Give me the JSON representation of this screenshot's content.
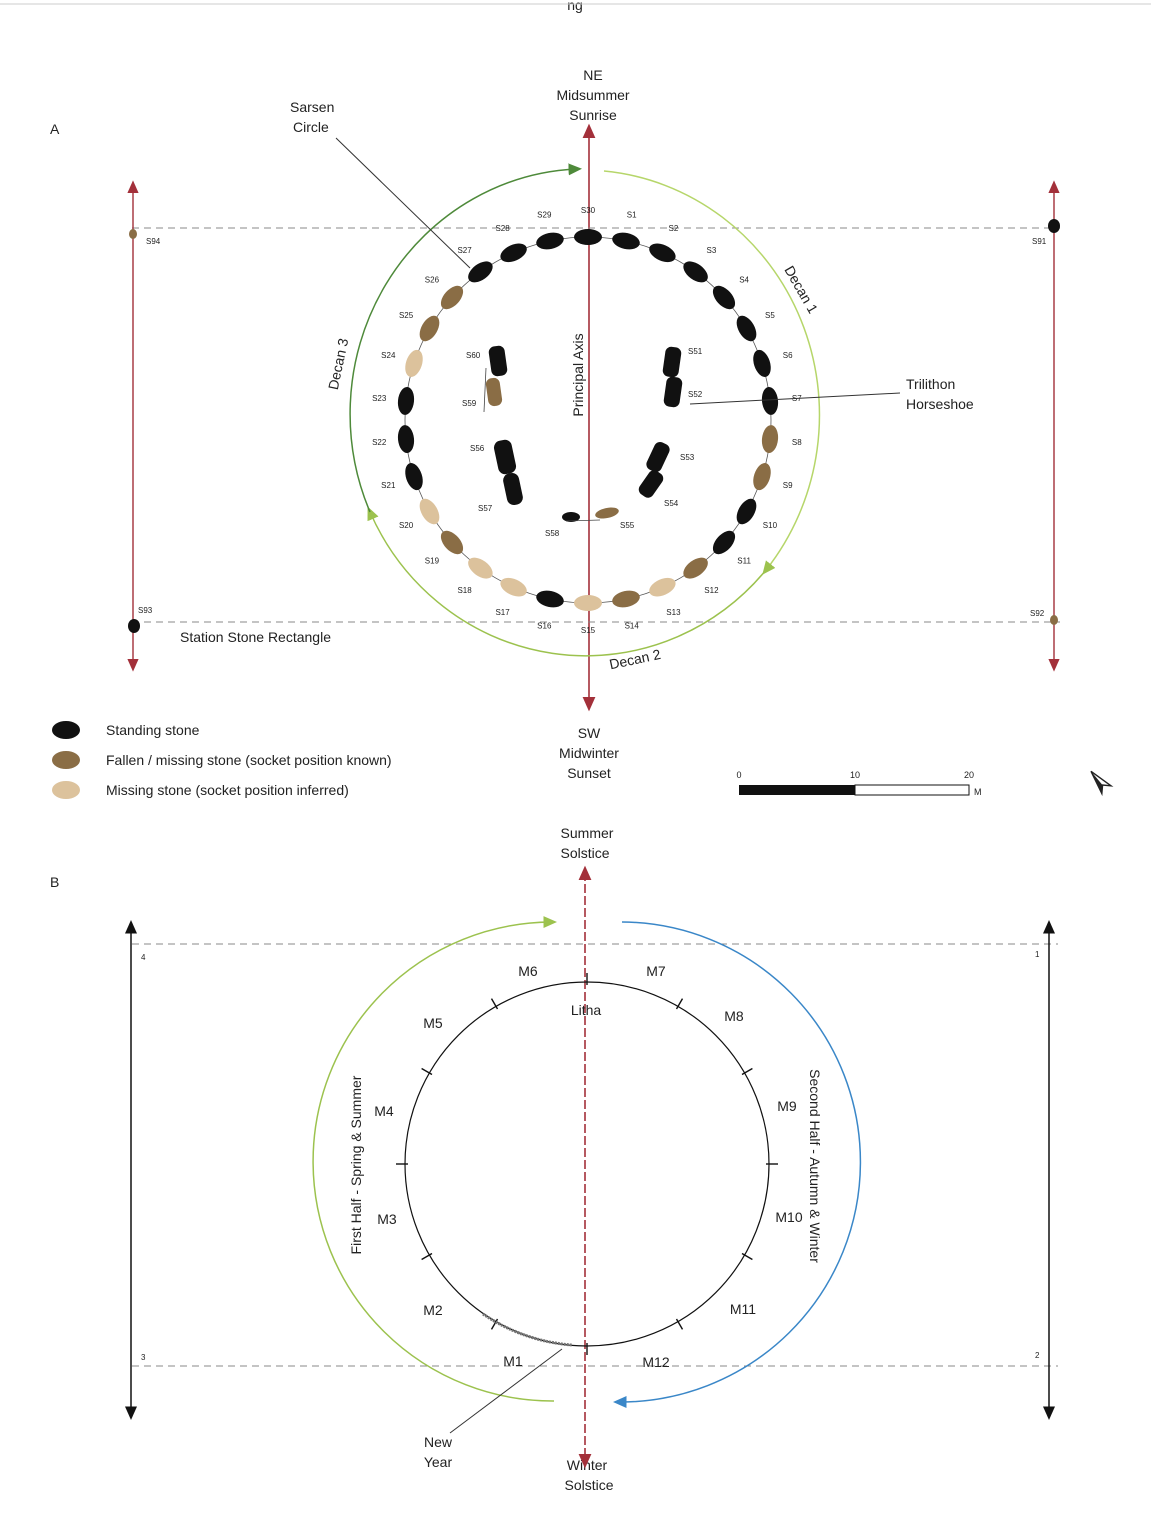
{
  "page_title": "ng",
  "panel_a": {
    "letter": "A",
    "top_label": [
      "NE",
      "Midsummer",
      "Sunrise"
    ],
    "bottom_label": [
      "SW",
      "Midwinter",
      "Sunset"
    ],
    "sarsen_label": [
      "Sarsen",
      "Circle"
    ],
    "trilithon_label": [
      "Trilithon",
      "Horseshoe"
    ],
    "axis_label": "Principal Axis",
    "rectangle_label": "Station Stone Rectangle",
    "decans": [
      "Decan 1",
      "Decan 2",
      "Decan 3"
    ],
    "station_stones": [
      "S91",
      "S92",
      "S93",
      "S94"
    ],
    "stones": [
      {
        "id": "S30",
        "state": "standing"
      },
      {
        "id": "S1",
        "state": "standing"
      },
      {
        "id": "S2",
        "state": "standing"
      },
      {
        "id": "S3",
        "state": "standing"
      },
      {
        "id": "S4",
        "state": "standing"
      },
      {
        "id": "S5",
        "state": "standing"
      },
      {
        "id": "S6",
        "state": "standing"
      },
      {
        "id": "S7",
        "state": "standing"
      },
      {
        "id": "S8",
        "state": "fallen"
      },
      {
        "id": "S9",
        "state": "fallen"
      },
      {
        "id": "S10",
        "state": "standing"
      },
      {
        "id": "S11",
        "state": "standing"
      },
      {
        "id": "S12",
        "state": "fallen"
      },
      {
        "id": "S13",
        "state": "missing"
      },
      {
        "id": "S14",
        "state": "fallen"
      },
      {
        "id": "S15",
        "state": "missing"
      },
      {
        "id": "S16",
        "state": "standing"
      },
      {
        "id": "S17",
        "state": "missing"
      },
      {
        "id": "S18",
        "state": "missing"
      },
      {
        "id": "S19",
        "state": "fallen"
      },
      {
        "id": "S20",
        "state": "missing"
      },
      {
        "id": "S21",
        "state": "standing"
      },
      {
        "id": "S22",
        "state": "standing"
      },
      {
        "id": "S23",
        "state": "standing"
      },
      {
        "id": "S24",
        "state": "missing"
      },
      {
        "id": "S25",
        "state": "fallen"
      },
      {
        "id": "S26",
        "state": "fallen"
      },
      {
        "id": "S27",
        "state": "standing"
      },
      {
        "id": "S28",
        "state": "standing"
      },
      {
        "id": "S29",
        "state": "standing"
      }
    ],
    "trilithon_stones": [
      "S51",
      "S52",
      "S53",
      "S54",
      "S55",
      "S56",
      "S57",
      "S58",
      "S59",
      "S60"
    ]
  },
  "legend": {
    "standing": "Standing stone",
    "fallen": "Fallen / missing stone (socket position known)",
    "missing": "Missing stone (socket position inferred)"
  },
  "scale": {
    "ticks": [
      "0",
      "10",
      "20"
    ],
    "unit": "M"
  },
  "panel_b": {
    "letter": "B",
    "top_label": [
      "Summer",
      "Solstice"
    ],
    "bottom_label": [
      "Winter",
      "Solstice"
    ],
    "center_label": "Litha",
    "new_year_label": [
      "New",
      "Year"
    ],
    "first_half": "First Half - Spring & Summer",
    "second_half": "Second Half - Autumn & Winter",
    "months": [
      "M1",
      "M2",
      "M3",
      "M4",
      "M5",
      "M6",
      "M7",
      "M8",
      "M9",
      "M10",
      "M11",
      "M12"
    ],
    "corner_numbers": [
      "1",
      "2",
      "3",
      "4"
    ]
  },
  "colors": {
    "standing": "#111111",
    "fallen": "#8a6d45",
    "missing": "#dcc29c",
    "axis_red": "#a3303a",
    "green_arc": "#4e8a3a",
    "lime_arc": "#b6d66a",
    "blue_arc": "#3a87c8"
  }
}
